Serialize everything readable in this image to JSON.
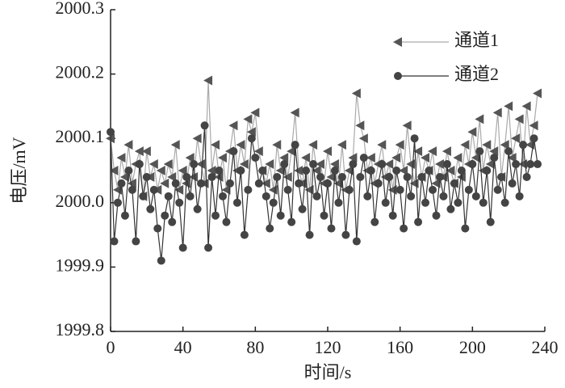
{
  "chart_data": {
    "type": "line",
    "xlabel": "时间/s",
    "ylabel": "电压/mV",
    "x": [
      0,
      2,
      4,
      6,
      8,
      10,
      12,
      14,
      16,
      18,
      20,
      22,
      24,
      26,
      28,
      30,
      32,
      34,
      36,
      38,
      40,
      42,
      44,
      46,
      48,
      50,
      52,
      54,
      56,
      58,
      60,
      62,
      64,
      66,
      68,
      70,
      72,
      74,
      76,
      78,
      80,
      82,
      84,
      86,
      88,
      90,
      92,
      94,
      96,
      98,
      100,
      102,
      104,
      106,
      108,
      110,
      112,
      114,
      116,
      118,
      120,
      122,
      124,
      126,
      128,
      130,
      132,
      134,
      136,
      138,
      140,
      142,
      144,
      146,
      148,
      150,
      152,
      154,
      156,
      158,
      160,
      162,
      164,
      166,
      168,
      170,
      172,
      174,
      176,
      178,
      180,
      182,
      184,
      186,
      188,
      190,
      192,
      194,
      196,
      198,
      200,
      202,
      204,
      206,
      208,
      210,
      212,
      214,
      216,
      218,
      220,
      222,
      224,
      226,
      228,
      230,
      232,
      234,
      236
    ],
    "series": [
      {
        "name": "通道1",
        "color": "#aaaaaa",
        "marker_color": "#555555",
        "marker": "triangle-left",
        "values": [
          2000.1,
          2000.05,
          2000.02,
          2000.07,
          2000.04,
          2000.09,
          2000.03,
          2000.06,
          2000.08,
          2000.01,
          2000.08,
          2000.04,
          2000.06,
          2000.02,
          2000.05,
          2000.03,
          2000.06,
          2000.04,
          2000.09,
          2000.02,
          2000.05,
          2000.03,
          2000.07,
          2000.04,
          2000.1,
          2000.06,
          2000.03,
          2000.19,
          2000.05,
          2000.09,
          2000.04,
          2000.07,
          2000.02,
          2000.08,
          2000.12,
          2000.05,
          2000.09,
          2000.06,
          2000.13,
          2000.11,
          2000.14,
          2000.08,
          2000.05,
          2000.03,
          2000.06,
          2000.02,
          2000.09,
          2000.05,
          2000.07,
          2000.04,
          2000.08,
          2000.14,
          2000.05,
          2000.03,
          2000.07,
          2000.02,
          2000.09,
          2000.05,
          2000.06,
          2000.03,
          2000.08,
          2000.04,
          2000.06,
          2000.03,
          2000.09,
          2000.02,
          2000.05,
          2000.07,
          2000.17,
          2000.12,
          2000.1,
          2000.05,
          2000.07,
          2000.03,
          2000.06,
          2000.09,
          2000.04,
          2000.06,
          2000.02,
          2000.07,
          2000.09,
          2000.05,
          2000.12,
          2000.06,
          2000.03,
          2000.08,
          2000.04,
          2000.07,
          2000.05,
          2000.08,
          2000.03,
          2000.06,
          2000.04,
          2000.08,
          2000.05,
          2000.03,
          2000.07,
          2000.04,
          2000.09,
          2000.06,
          2000.11,
          2000.07,
          2000.13,
          2000.05,
          2000.09,
          2000.06,
          2000.08,
          2000.14,
          2000.04,
          2000.09,
          2000.15,
          2000.07,
          2000.1,
          2000.13,
          2000.06,
          2000.15,
          2000.09,
          2000.12,
          2000.17
        ]
      },
      {
        "name": "通道2",
        "color": "#333333",
        "marker_color": "#444444",
        "marker": "circle",
        "values": [
          2000.11,
          1999.94,
          2000.0,
          2000.03,
          1999.98,
          2000.05,
          2000.02,
          1999.94,
          2000.06,
          2000.01,
          2000.04,
          1999.99,
          2000.02,
          1999.96,
          1999.91,
          1999.98,
          2000.01,
          1999.97,
          2000.03,
          2000.0,
          1999.93,
          2000.04,
          2000.01,
          2000.06,
          1999.99,
          2000.03,
          2000.12,
          1999.93,
          2000.04,
          1999.98,
          2000.05,
          2000.01,
          1999.97,
          2000.03,
          2000.08,
          2000.0,
          2000.05,
          1999.95,
          2000.02,
          2000.1,
          2000.07,
          2000.03,
          2000.05,
          2000.01,
          1999.96,
          2000.0,
          2000.04,
          1999.98,
          2000.06,
          2000.02,
          1999.97,
          2000.09,
          2000.03,
          1999.99,
          2000.05,
          1999.95,
          2000.06,
          2000.01,
          2000.04,
          1999.98,
          2000.03,
          1999.96,
          2000.05,
          2000.0,
          2000.04,
          1999.95,
          2000.02,
          2000.06,
          1999.94,
          2000.04,
          2000.07,
          2000.01,
          2000.05,
          1999.97,
          2000.03,
          2000.06,
          2000.0,
          2000.04,
          1999.98,
          2000.05,
          2000.02,
          1999.96,
          2000.04,
          2000.01,
          2000.1,
          1999.97,
          2000.04,
          2000.0,
          2000.05,
          2000.02,
          1999.98,
          2000.04,
          2000.01,
          2000.06,
          1999.99,
          2000.03,
          2000.0,
          2000.05,
          1999.96,
          2000.02,
          2000.06,
          2000.01,
          2000.08,
          2000.0,
          2000.05,
          1999.97,
          2000.07,
          2000.02,
          2000.04,
          2000.0,
          2000.08,
          2000.03,
          2000.06,
          2000.01,
          2000.09,
          2000.04,
          2000.06,
          2000.1,
          2000.06
        ]
      }
    ],
    "xlim": [
      0,
      240
    ],
    "xticks": [
      0,
      40,
      80,
      120,
      160,
      200,
      240
    ],
    "ylim": [
      1999.8,
      2000.3
    ],
    "yticks": [
      1999.8,
      1999.9,
      {
        "value": 2000,
        "label": "2000.0"
      },
      2000.1,
      2000.2,
      2000.3
    ],
    "legend": "upper right",
    "grid": false
  }
}
